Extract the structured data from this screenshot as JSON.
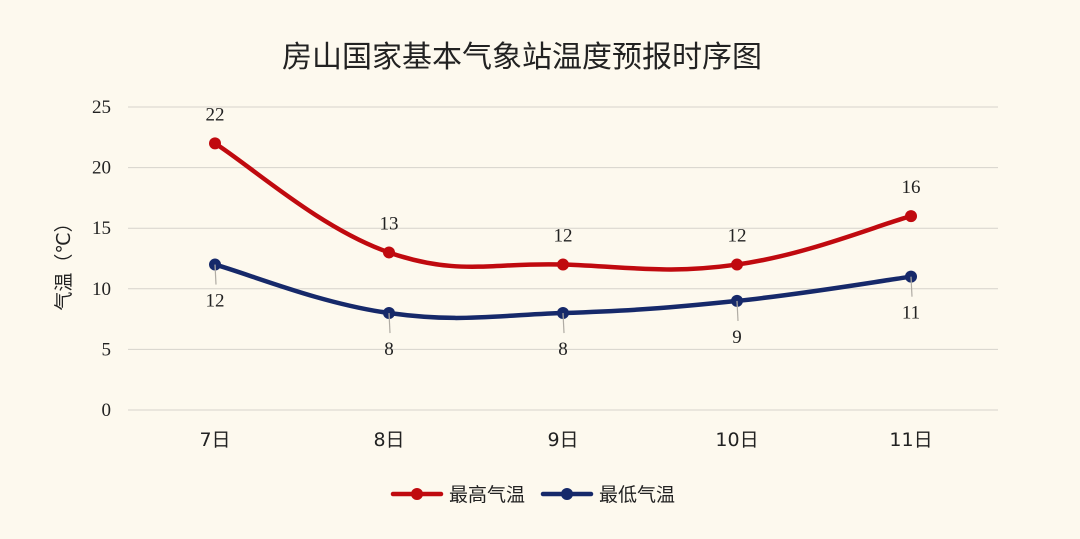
{
  "chart_data": {
    "type": "line",
    "title": "房山国家基本气象站温度预报时序图",
    "ylabel": "气温（℃）",
    "xlabel": "",
    "categories": [
      "7日",
      "8日",
      "9日",
      "10日",
      "11日"
    ],
    "ylim": [
      0,
      25
    ],
    "yticks": [
      "0",
      "5",
      "10",
      "15",
      "20",
      "25"
    ],
    "grid": true,
    "legend_position": "bottom-center",
    "series": [
      {
        "name": "最高气温",
        "values": [
          22,
          13,
          12,
          12,
          16
        ],
        "color": "#c00a0f",
        "label_position": "above"
      },
      {
        "name": "最低气温",
        "values": [
          12,
          8,
          8,
          9,
          11
        ],
        "color": "#16296a",
        "label_position": "below"
      }
    ]
  }
}
